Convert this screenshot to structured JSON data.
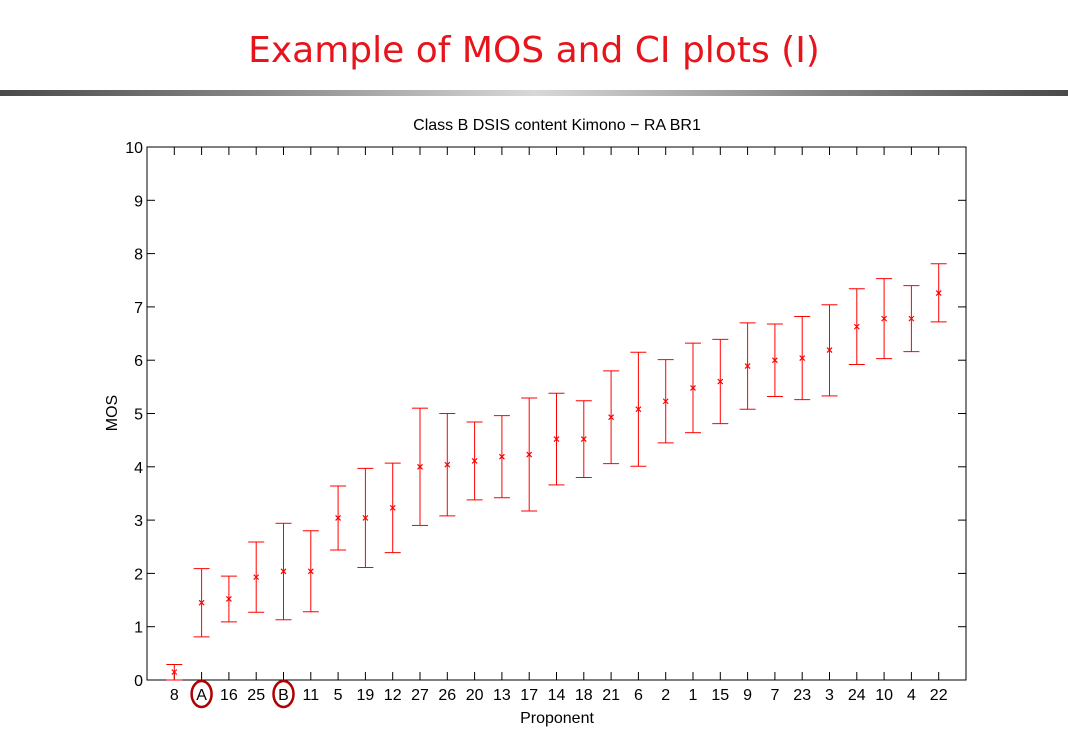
{
  "slide": {
    "title": "Example of MOS and CI plots (I)"
  },
  "chart_data": {
    "type": "scatter",
    "title": "Class B DSIS content Kimono − RA BR1",
    "xlabel": "Proponent",
    "ylabel": "MOS",
    "ylim": [
      0,
      10
    ],
    "yticks": [
      0,
      1,
      2,
      3,
      4,
      5,
      6,
      7,
      8,
      9,
      10
    ],
    "grid": false,
    "marker": "x",
    "error_bars": true,
    "color": "#ff0000",
    "categories": [
      "8",
      "A",
      "16",
      "25",
      "B",
      "11",
      "5",
      "19",
      "12",
      "27",
      "26",
      "20",
      "13",
      "17",
      "14",
      "18",
      "21",
      "6",
      "2",
      "1",
      "15",
      "9",
      "7",
      "23",
      "3",
      "24",
      "10",
      "4",
      "22"
    ],
    "highlighted": [
      "A",
      "B"
    ],
    "highlight_color": "#b00000",
    "series": [
      {
        "values": [
          0.15,
          1.45,
          1.52,
          1.93,
          2.04,
          2.04,
          3.04,
          3.04,
          3.23,
          4.0,
          4.04,
          4.11,
          4.19,
          4.23,
          4.52,
          4.52,
          4.93,
          5.08,
          5.23,
          5.48,
          5.6,
          5.89,
          6.0,
          6.04,
          6.19,
          6.63,
          6.78,
          6.78,
          7.26
        ],
        "ci_low": [
          0.0,
          0.81,
          1.09,
          1.27,
          1.13,
          1.28,
          2.44,
          2.11,
          2.39,
          2.9,
          3.08,
          3.38,
          3.42,
          3.17,
          3.66,
          3.8,
          4.06,
          4.01,
          4.45,
          4.64,
          4.81,
          5.08,
          5.32,
          5.26,
          5.33,
          5.92,
          6.03,
          6.16,
          6.72
        ],
        "ci_high": [
          0.29,
          2.09,
          1.95,
          2.59,
          2.94,
          2.8,
          3.64,
          3.97,
          4.07,
          5.1,
          5.0,
          4.84,
          4.96,
          5.29,
          5.38,
          5.24,
          5.8,
          6.15,
          6.01,
          6.32,
          6.39,
          6.7,
          6.68,
          6.82,
          7.04,
          7.34,
          7.53,
          7.4,
          7.81
        ]
      }
    ]
  }
}
